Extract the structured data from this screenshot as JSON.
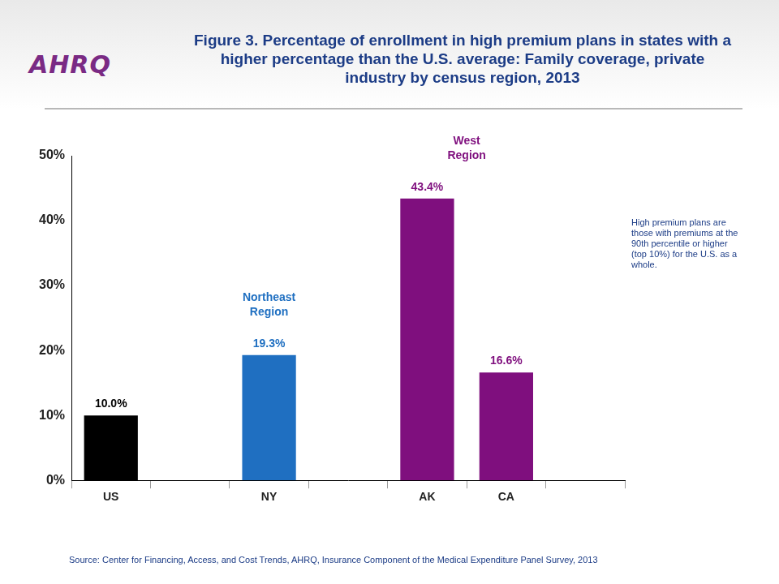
{
  "logo": "AHRQ",
  "chart_data": {
    "type": "bar",
    "title": "Figure 3. Percentage of enrollment in high premium plans in states with a higher percentage than the U.S. average: Family coverage, private industry by census region, 2013",
    "categories": [
      "US",
      null,
      "NY",
      null,
      "AK",
      "CA",
      null
    ],
    "values": [
      10.0,
      null,
      19.3,
      null,
      43.4,
      16.6,
      null
    ],
    "value_labels": [
      "10.0%",
      null,
      "19.3%",
      null,
      "43.4%",
      "16.6%",
      null
    ],
    "colors": [
      "#000000",
      null,
      "#1f6fc1",
      null,
      "#7f0f7e",
      "#7f0f7e",
      null
    ],
    "data_labels": true,
    "ylim": [
      0,
      50
    ],
    "yticks": [
      {
        "value": 0,
        "label": "0%"
      },
      {
        "value": 10,
        "label": "10%"
      },
      {
        "value": 20,
        "label": "20%"
      },
      {
        "value": 30,
        "label": "30%"
      },
      {
        "value": 40,
        "label": "40%"
      },
      {
        "value": 50,
        "label": "50%"
      }
    ],
    "grid": false,
    "annotations": [
      {
        "text": [
          "Northeast",
          "Region"
        ],
        "categories": [
          "NY"
        ],
        "color": "#1f6fc1"
      },
      {
        "text": [
          "West",
          "Region"
        ],
        "categories": [
          "AK",
          "CA"
        ],
        "color": "#7f0f7e"
      }
    ],
    "note": "High premium plans are those with premiums at the 90th percentile or higher (top 10%) for the U.S. as a whole.",
    "source": "Source: Center for Financing, Access, and Cost Trends, AHRQ, Insurance Component of the Medical Expenditure Panel Survey, 2013"
  }
}
